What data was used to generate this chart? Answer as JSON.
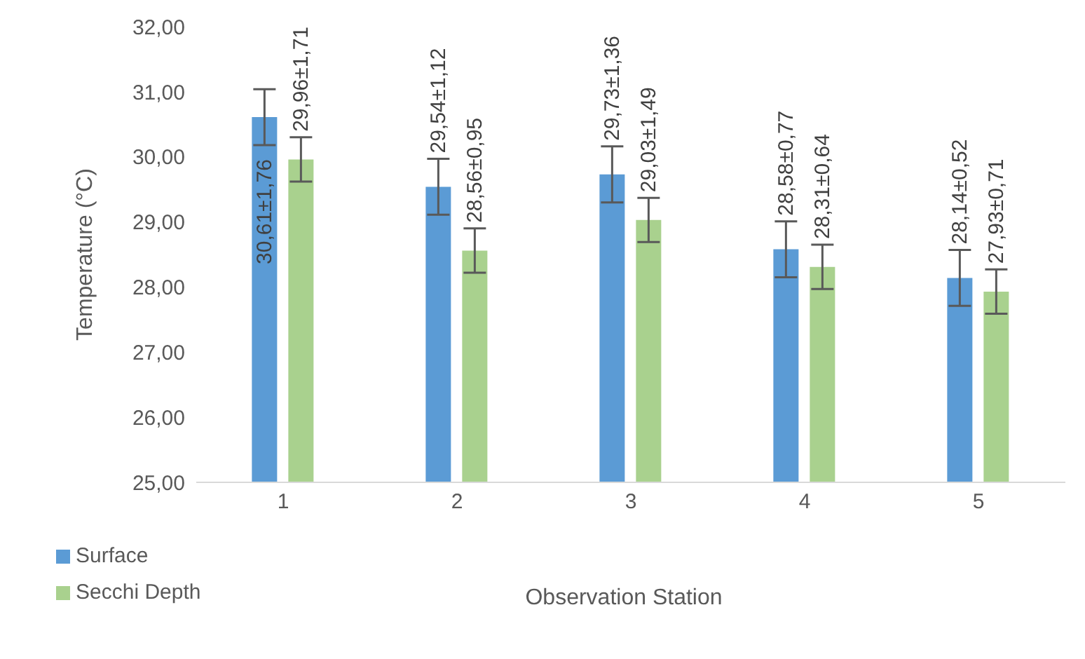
{
  "chart_data": {
    "type": "bar",
    "xlabel": "Observation Station",
    "ylabel": "Temperature (°C)",
    "categories": [
      "1",
      "2",
      "3",
      "4",
      "5"
    ],
    "series": [
      {
        "name": "Surface",
        "color": "#5b9bd5",
        "values": [
          30.61,
          29.54,
          29.73,
          28.58,
          28.14
        ],
        "errors": [
          0.43,
          0.43,
          0.43,
          0.43,
          0.43
        ],
        "value_labels": [
          "30,61±1,76",
          "29,54±1,12",
          "29,73±1,36",
          "28,58±0,77",
          "28,14±0,52"
        ]
      },
      {
        "name": "Secchi Depth",
        "color": "#a9d18e",
        "values": [
          29.96,
          28.56,
          29.03,
          28.31,
          27.93
        ],
        "errors": [
          0.34,
          0.34,
          0.34,
          0.34,
          0.34
        ],
        "value_labels": [
          "29,96±1,71",
          "28,56±0,95",
          "29,03±1,49",
          "28,31±0,64",
          "27,93±0,71"
        ]
      }
    ],
    "ylim": [
      25,
      32
    ],
    "yticks": [
      {
        "value": 25,
        "label": "25,00"
      },
      {
        "value": 26,
        "label": "26,00"
      },
      {
        "value": 27,
        "label": "27,00"
      },
      {
        "value": 28,
        "label": "28,00"
      },
      {
        "value": 29,
        "label": "29,00"
      },
      {
        "value": 30,
        "label": "30,00"
      },
      {
        "value": 31,
        "label": "31,00"
      },
      {
        "value": 32,
        "label": "32,00"
      }
    ],
    "grid": false,
    "legend": "bottom left"
  }
}
